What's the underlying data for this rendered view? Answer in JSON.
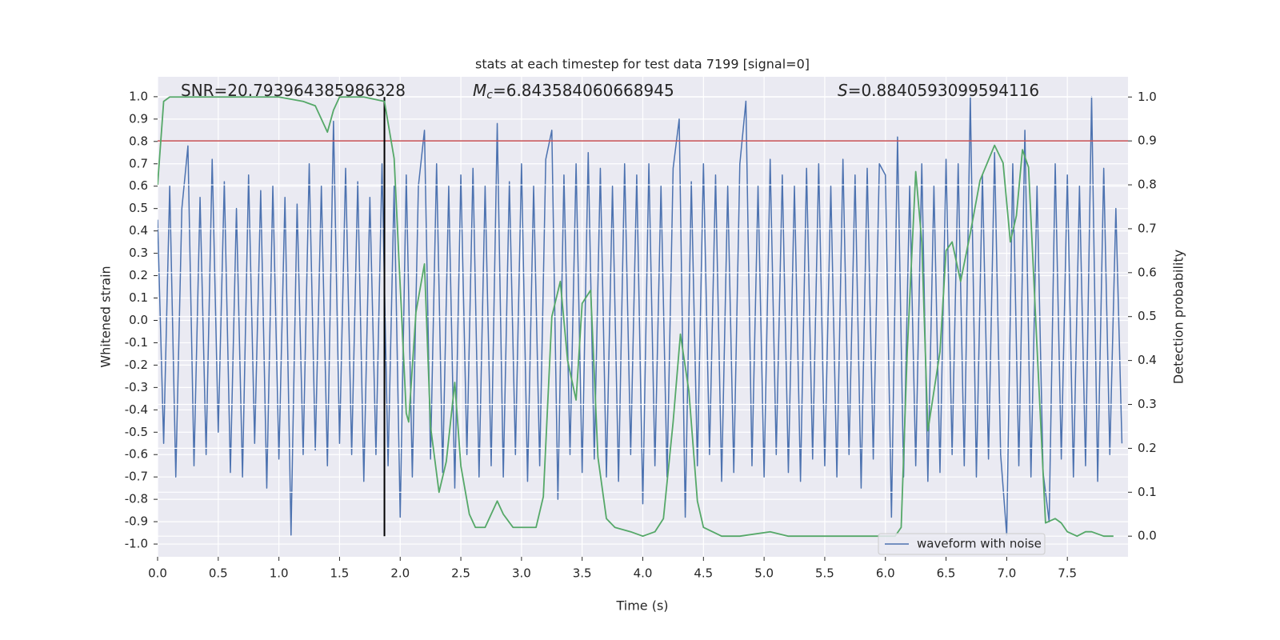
{
  "chart_data": {
    "type": "line",
    "title": "stats at each timestep for test data 7199 [signal=0]",
    "xlabel": "Time (s)",
    "ylabel": "Whitened strain",
    "y2label": "Detection probability",
    "xlim": [
      0,
      8.0
    ],
    "ylim": [
      -1.057,
      1.089
    ],
    "y2lim": [
      -0.047,
      1.046
    ],
    "xticks": [
      {
        "value": 0,
        "label": "0.0"
      },
      0.5,
      {
        "value": 1,
        "label": "1.0"
      },
      1.5,
      {
        "value": 2,
        "label": "2.0"
      },
      2.5,
      {
        "value": 3,
        "label": "3.0"
      },
      3.5,
      {
        "value": 4,
        "label": "4.0"
      },
      4.5,
      {
        "value": 5,
        "label": "5.0"
      },
      5.5,
      {
        "value": 6,
        "label": "6.0"
      },
      6.5,
      {
        "value": 7,
        "label": "7.0"
      },
      7.5
    ],
    "yticks": [
      {
        "value": -1,
        "label": "-1.0"
      },
      -0.9,
      -0.8,
      -0.7,
      -0.6,
      -0.5,
      -0.4,
      -0.3,
      -0.2,
      -0.1,
      {
        "value": 0,
        "label": "0.0"
      },
      0.1,
      0.2,
      0.3,
      0.4,
      0.5,
      0.6,
      0.7,
      0.8,
      0.9,
      {
        "value": 1,
        "label": "1.0"
      }
    ],
    "y2ticks": [
      {
        "value": 0,
        "label": "0.0"
      },
      0.1,
      0.2,
      0.3,
      0.4,
      0.5,
      0.6,
      0.7,
      0.8,
      0.9,
      {
        "value": 1,
        "label": "1.0"
      }
    ],
    "grid": true,
    "legend": "lower right",
    "annotations": [
      {
        "text": "SNR=20.793964385986328"
      },
      {
        "symbol": "M",
        "subscript": "c",
        "text": "=6.843584060668945"
      },
      {
        "symbol": "S",
        "text": "=0.8840593099594116"
      }
    ],
    "hline": {
      "y": 0.9,
      "axis": "y2",
      "color": "#c44e52"
    },
    "vline": {
      "x": 1.87,
      "ymin": 0,
      "ymax": 1,
      "axis": "y2",
      "color": "#000000"
    },
    "series": [
      {
        "name": "waveform with noise",
        "color": "#4c72b0",
        "x": [
          0,
          0.05,
          0.1,
          0.15,
          0.2,
          0.25,
          0.3,
          0.35,
          0.4,
          0.45,
          0.5,
          0.55,
          0.6,
          0.65,
          0.7,
          0.75,
          0.8,
          0.85,
          0.9,
          0.95,
          1,
          1.05,
          1.1,
          1.15,
          1.2,
          1.25,
          1.3,
          1.35,
          1.4,
          1.45,
          1.5,
          1.55,
          1.6,
          1.65,
          1.7,
          1.75,
          1.8,
          1.85,
          1.9,
          1.95,
          2,
          2.05,
          2.1,
          2.15,
          2.2,
          2.25,
          2.3,
          2.35,
          2.4,
          2.45,
          2.5,
          2.55,
          2.6,
          2.65,
          2.7,
          2.75,
          2.8,
          2.85,
          2.9,
          2.95,
          3,
          3.05,
          3.1,
          3.15,
          3.2,
          3.25,
          3.3,
          3.35,
          3.4,
          3.45,
          3.5,
          3.55,
          3.6,
          3.65,
          3.7,
          3.75,
          3.8,
          3.85,
          3.9,
          3.95,
          4,
          4.05,
          4.1,
          4.15,
          4.2,
          4.25,
          4.3,
          4.35,
          4.4,
          4.45,
          4.5,
          4.55,
          4.6,
          4.65,
          4.7,
          4.75,
          4.8,
          4.85,
          4.9,
          4.95,
          5,
          5.05,
          5.1,
          5.15,
          5.2,
          5.25,
          5.3,
          5.35,
          5.4,
          5.45,
          5.5,
          5.55,
          5.6,
          5.65,
          5.7,
          5.75,
          5.8,
          5.85,
          5.9,
          5.95,
          6,
          6.05,
          6.1,
          6.15,
          6.2,
          6.25,
          6.3,
          6.35,
          6.4,
          6.45,
          6.5,
          6.55,
          6.6,
          6.65,
          6.7,
          6.75,
          6.8,
          6.85,
          6.9,
          6.95,
          7,
          7.05,
          7.1,
          7.15,
          7.2,
          7.25,
          7.3,
          7.35,
          7.4,
          7.45,
          7.5,
          7.55,
          7.6,
          7.65,
          7.7,
          7.75,
          7.8,
          7.85,
          7.9,
          7.95
        ],
        "values": [
          0.45,
          -0.55,
          0.6,
          -0.7,
          0.5,
          0.78,
          -0.65,
          0.55,
          -0.6,
          0.72,
          -0.5,
          0.62,
          -0.68,
          0.5,
          -0.7,
          0.65,
          -0.55,
          0.58,
          -0.75,
          0.6,
          -0.62,
          0.55,
          -0.96,
          0.52,
          -0.6,
          0.7,
          -0.58,
          0.6,
          -0.65,
          0.89,
          -0.55,
          0.68,
          -0.6,
          0.62,
          -0.72,
          0.55,
          -0.6,
          0.7,
          -0.65,
          0.6,
          -0.88,
          0.65,
          -0.7,
          0.6,
          0.85,
          -0.62,
          0.7,
          -0.68,
          0.6,
          -0.75,
          0.65,
          -0.6,
          0.68,
          -0.7,
          0.6,
          -0.65,
          0.88,
          -0.7,
          0.62,
          -0.6,
          0.7,
          -0.72,
          0.6,
          -0.65,
          0.72,
          0.85,
          -0.8,
          0.65,
          -0.6,
          0.7,
          -0.68,
          0.75,
          -0.62,
          0.68,
          -0.7,
          0.6,
          -0.72,
          0.7,
          -0.6,
          0.65,
          -0.82,
          0.7,
          -0.65,
          0.6,
          -0.7,
          0.68,
          0.9,
          -0.88,
          0.62,
          -0.65,
          0.7,
          -0.6,
          0.65,
          -0.72,
          0.6,
          -0.68,
          0.7,
          0.98,
          -0.65,
          0.6,
          -0.7,
          0.72,
          -0.6,
          0.65,
          -0.68,
          0.6,
          -0.72,
          0.68,
          -0.62,
          0.7,
          -0.65,
          0.6,
          -0.7,
          0.72,
          -0.6,
          0.65,
          -0.75,
          0.68,
          -0.62,
          0.7,
          0.65,
          -0.88,
          0.82,
          -0.7,
          0.6,
          -0.65,
          0.7,
          -0.72,
          0.6,
          -0.68,
          0.72,
          -0.6,
          0.7,
          -0.65,
          1.0,
          -0.7,
          0.65,
          -0.62,
          0.75,
          -0.6,
          -0.96,
          0.7,
          -0.65,
          0.85,
          -0.7,
          0.6,
          -0.68,
          -0.9,
          0.7,
          -0.62,
          0.65,
          -0.7,
          0.6,
          -0.65,
          1.0,
          -0.72,
          0.68,
          -0.6,
          0.5,
          -0.55
        ]
      },
      {
        "color": "#55a868",
        "axis": "y2",
        "x": [
          0,
          0.05,
          0.1,
          0.5,
          1,
          1.2,
          1.3,
          1.4,
          1.45,
          1.5,
          1.7,
          1.87,
          1.95,
          2.05,
          2.07,
          2.13,
          2.2,
          2.25,
          2.32,
          2.38,
          2.45,
          2.5,
          2.57,
          2.62,
          2.7,
          2.8,
          2.85,
          2.93,
          3,
          3.12,
          3.18,
          3.25,
          3.32,
          3.38,
          3.45,
          3.5,
          3.57,
          3.63,
          3.7,
          3.77,
          3.9,
          4,
          4.1,
          4.17,
          4.25,
          4.31,
          4.38,
          4.45,
          4.5,
          4.65,
          4.8,
          5.05,
          5.2,
          5.6,
          5.8,
          6,
          6.08,
          6.13,
          6.18,
          6.25,
          6.3,
          6.35,
          6.45,
          6.5,
          6.55,
          6.62,
          6.7,
          6.78,
          6.9,
          6.97,
          7.03,
          7.08,
          7.13,
          7.18,
          7.25,
          7.32,
          7.4,
          7.45,
          7.5,
          7.58,
          7.65,
          7.7,
          7.8,
          7.88
        ],
        "values": [
          0.8,
          0.99,
          1.0,
          1.0,
          1.0,
          0.99,
          0.98,
          0.92,
          0.97,
          1.0,
          1.0,
          0.99,
          0.86,
          0.28,
          0.26,
          0.51,
          0.62,
          0.25,
          0.1,
          0.17,
          0.35,
          0.16,
          0.05,
          0.02,
          0.02,
          0.08,
          0.05,
          0.02,
          0.02,
          0.02,
          0.09,
          0.5,
          0.58,
          0.4,
          0.31,
          0.53,
          0.56,
          0.18,
          0.04,
          0.02,
          0.01,
          0.0,
          0.01,
          0.04,
          0.26,
          0.46,
          0.33,
          0.08,
          0.02,
          0.0,
          0.0,
          0.01,
          0.0,
          0.0,
          0.0,
          0.0,
          0.0,
          0.02,
          0.42,
          0.83,
          0.67,
          0.24,
          0.42,
          0.65,
          0.67,
          0.58,
          0.69,
          0.81,
          0.89,
          0.85,
          0.67,
          0.73,
          0.88,
          0.84,
          0.43,
          0.03,
          0.04,
          0.03,
          0.01,
          0.0,
          0.01,
          0.01,
          0.0,
          0.0
        ]
      }
    ]
  }
}
